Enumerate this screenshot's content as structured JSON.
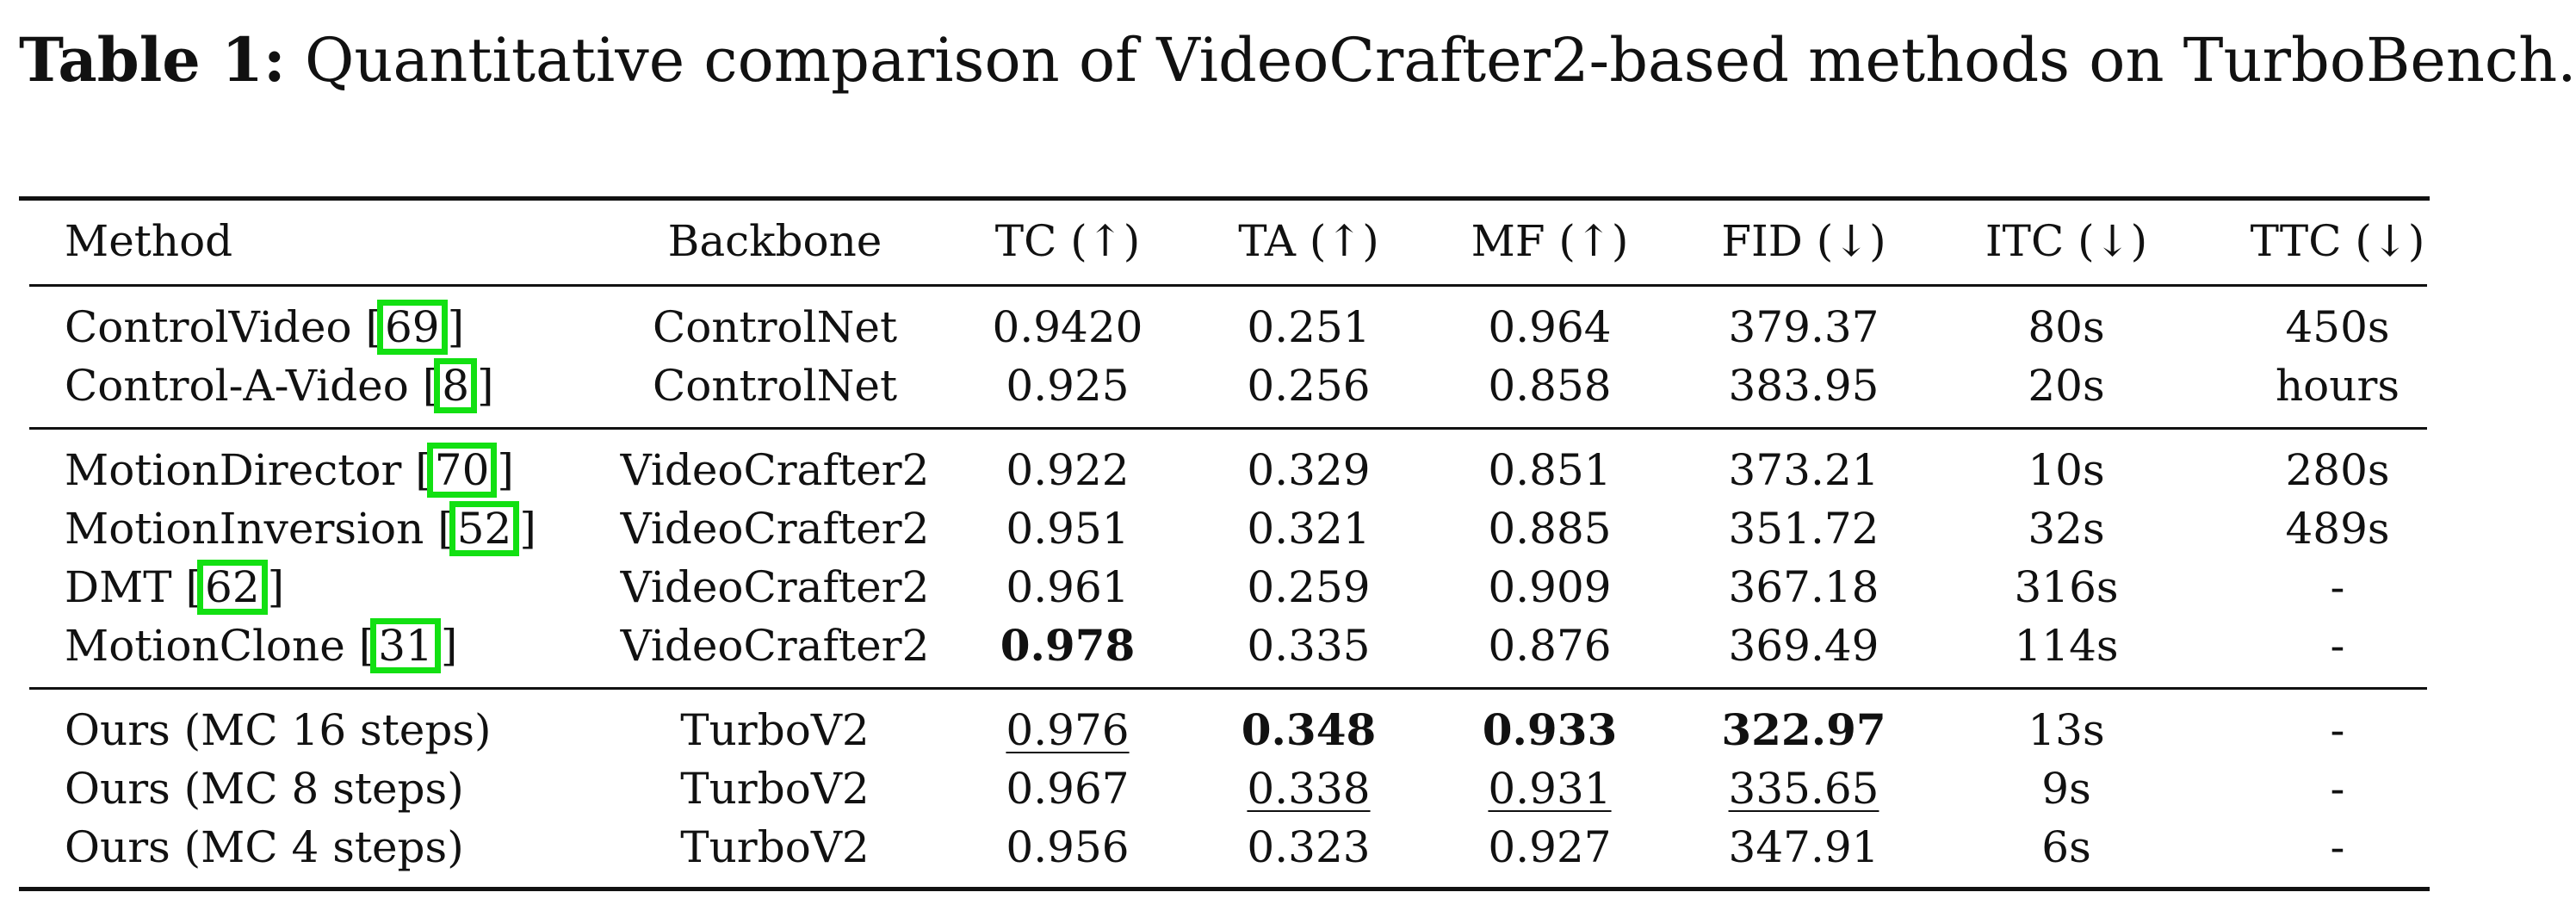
{
  "caption": {
    "label": "Table 1:",
    "text": "Quantitative comparison of VideoCrafter2-based methods on TurboBench."
  },
  "table": {
    "headers": [
      "Method",
      "Backbone",
      "TC (↑)",
      "TA (↑)",
      "MF (↑)",
      "FID (↓)",
      "ITC (↓)",
      "TTC (↓)"
    ],
    "rows": [
      {
        "method": "ControlVideo [",
        "cite": "69",
        "close": "]",
        "backbone": "ControlNet",
        "tc": "0.9420",
        "ta": "0.251",
        "mf": "0.964",
        "fid": "379.37",
        "itc": "80s",
        "ttc": "450s"
      },
      {
        "method": "Control-A-Video [",
        "cite": "8",
        "close": "]",
        "backbone": "ControlNet",
        "tc": "0.925",
        "ta": "0.256",
        "mf": "0.858",
        "fid": "383.95",
        "itc": "20s",
        "ttc": "hours"
      },
      {
        "method": "MotionDirector [",
        "cite": "70",
        "close": "]",
        "backbone": "VideoCrafter2",
        "tc": "0.922",
        "ta": "0.329",
        "mf": "0.851",
        "fid": "373.21",
        "itc": "10s",
        "ttc": "280s"
      },
      {
        "method": "MotionInversion [",
        "cite": "52",
        "close": "]",
        "backbone": "VideoCrafter2",
        "tc": "0.951",
        "ta": "0.321",
        "mf": "0.885",
        "fid": "351.72",
        "itc": "32s",
        "ttc": "489s"
      },
      {
        "method": "DMT [",
        "cite": "62",
        "close": "]",
        "backbone": "VideoCrafter2",
        "tc": "0.961",
        "ta": "0.259",
        "mf": "0.909",
        "fid": "367.18",
        "itc": "316s",
        "ttc": "-"
      },
      {
        "method": "MotionClone [",
        "cite": "31",
        "close": "]",
        "backbone": "VideoCrafter2",
        "tc": "0.978",
        "ta": "0.335",
        "mf": "0.876",
        "fid": "369.49",
        "itc": "114s",
        "ttc": "-"
      },
      {
        "method": "Ours (MC 16 steps)",
        "backbone": "TurboV2",
        "tc": "0.976",
        "ta": "0.348",
        "mf": "0.933",
        "fid": "322.97",
        "itc": "13s",
        "ttc": "-"
      },
      {
        "method": "Ours (MC 8 steps)",
        "backbone": "TurboV2",
        "tc": "0.967",
        "ta": "0.338",
        "mf": "0.931",
        "fid": "335.65",
        "itc": "9s",
        "ttc": "-"
      },
      {
        "method": "Ours (MC 4 steps)",
        "backbone": "TurboV2",
        "tc": "0.956",
        "ta": "0.323",
        "mf": "0.927",
        "fid": "347.91",
        "itc": "6s",
        "ttc": "-"
      }
    ]
  }
}
